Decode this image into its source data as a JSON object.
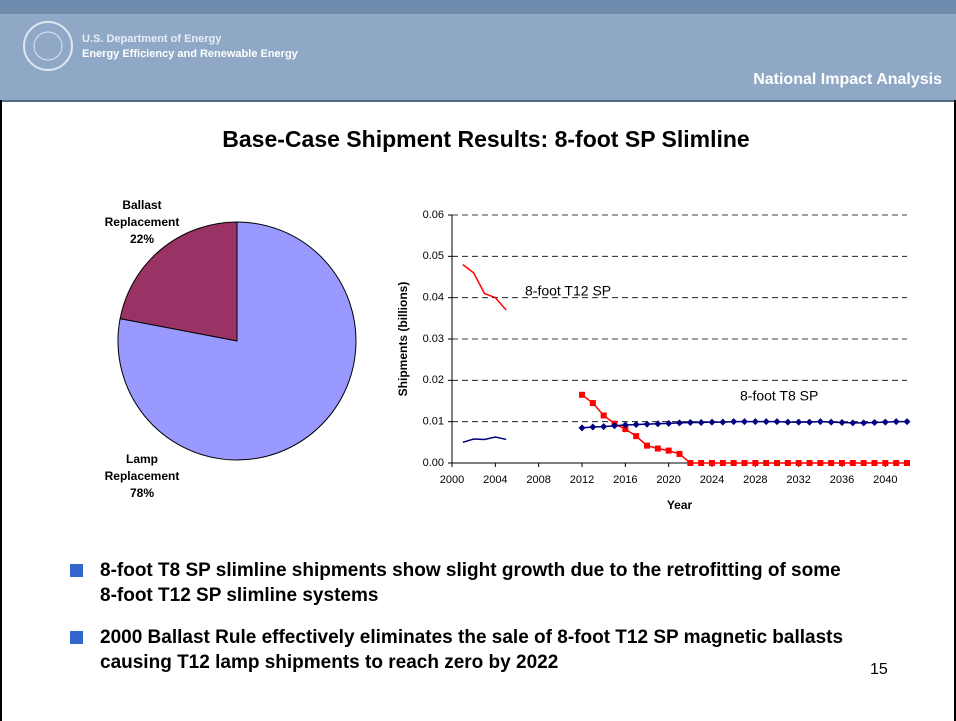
{
  "header": {
    "org": "U.S. Department of Energy",
    "office": "Energy Efficiency and Renewable Energy",
    "section": "National Impact Analysis"
  },
  "title": "Base-Case Shipment Results: 8-foot SP Slimline",
  "chart_data": [
    {
      "type": "pie",
      "categories": [
        "Ballast Replacement",
        "Lamp Replacement"
      ],
      "values": [
        22,
        78
      ],
      "value_labels": [
        "22%",
        "78%"
      ],
      "colors": [
        "#993366",
        "#9999ff"
      ]
    },
    {
      "type": "line",
      "y_label": "Shipments (billions)",
      "x_label": "Year",
      "x": [
        2001,
        2002,
        2003,
        2004,
        2005,
        2006,
        2007,
        2008,
        2009,
        2010,
        2011,
        2012,
        2013,
        2014,
        2015,
        2016,
        2017,
        2018,
        2019,
        2020,
        2021,
        2022,
        2023,
        2024,
        2025,
        2026,
        2027,
        2028,
        2029,
        2030,
        2031,
        2032,
        2033,
        2034,
        2035,
        2036,
        2037,
        2038,
        2039,
        2040,
        2041,
        2042
      ],
      "series": [
        {
          "name": "8-foot T12 SP",
          "color": "#ff0000",
          "marker": "square",
          "values": [
            0.048,
            0.046,
            0.041,
            0.04,
            0.037,
            null,
            null,
            null,
            null,
            null,
            null,
            0.0165,
            0.0145,
            0.0115,
            0.0095,
            0.0082,
            0.0065,
            0.0042,
            0.0035,
            0.003,
            0.0022,
            0,
            0,
            0,
            0,
            0,
            0,
            0,
            0,
            0,
            0,
            0,
            0,
            0,
            0,
            0,
            0,
            0,
            0,
            0,
            0,
            0
          ]
        },
        {
          "name": "8-foot T8 SP",
          "color": "#000080",
          "marker": "diamond",
          "values": [
            0.005,
            0.0058,
            0.0057,
            0.0063,
            0.0057,
            null,
            null,
            null,
            null,
            null,
            null,
            0.0085,
            0.0087,
            0.0088,
            0.009,
            0.0092,
            0.0093,
            0.0094,
            0.0095,
            0.0096,
            0.0097,
            0.0098,
            0.0098,
            0.0099,
            0.0099,
            0.01,
            0.01,
            0.01,
            0.01,
            0.01,
            0.0099,
            0.0099,
            0.0099,
            0.01,
            0.0099,
            0.0098,
            0.0097,
            0.0097,
            0.0098,
            0.0099,
            0.01,
            0.01
          ]
        }
      ],
      "xlim": [
        2000,
        2042
      ],
      "xticks": [
        2000,
        2004,
        2008,
        2012,
        2016,
        2020,
        2024,
        2028,
        2032,
        2036,
        2040
      ],
      "ylim": [
        0,
        0.06
      ],
      "yticks": [
        {
          "value": 0,
          "label": "0.00"
        },
        0.01,
        0.02,
        0.03,
        0.04,
        0.05,
        0.06
      ],
      "grid": true
    }
  ],
  "bullets": [
    "8-foot T8 SP slimline shipments show slight growth due to the retrofitting of some 8-foot T12 SP slimline systems",
    "2000 Ballast Rule effectively eliminates the sale of 8-foot T12 SP magnetic ballasts causing T12 lamp shipments to reach zero by 2022"
  ],
  "page_number": "15"
}
